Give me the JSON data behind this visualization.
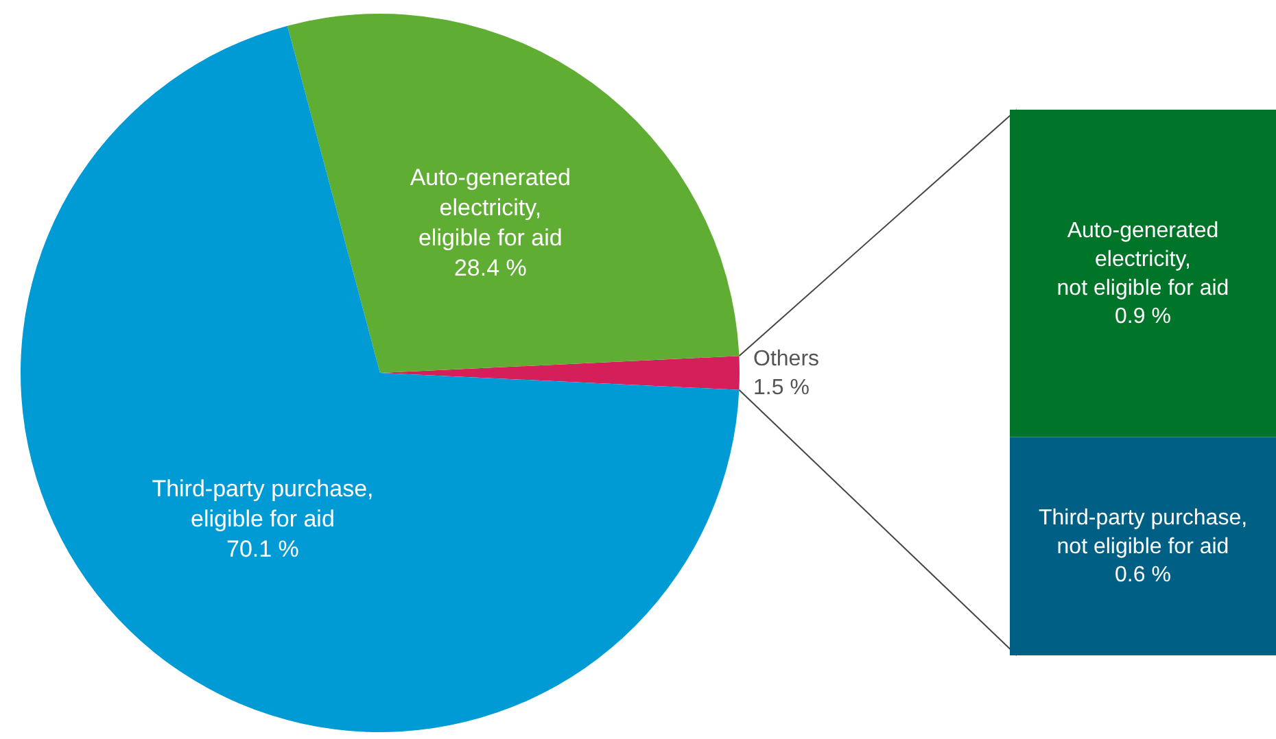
{
  "chart_data": [
    {
      "type": "pie",
      "categories": [
        "Others",
        "Auto-generated electricity, eligible for aid",
        "Third-party purchase, eligible for aid"
      ],
      "values": [
        1.5,
        28.4,
        70.1
      ],
      "colors": [
        "#d41f5b",
        "#5fad32",
        "#009bd5"
      ],
      "value_labels": [
        "1.5 %",
        "28.4 %",
        "70.1 %"
      ]
    },
    {
      "type": "bar",
      "stacked": true,
      "categories": [
        null
      ],
      "series": [
        {
          "name": "Third-party purchase, not eligible for aid",
          "color": "#005f85",
          "values": [
            0.6
          ],
          "value_labels": [
            "0.6 %"
          ]
        },
        {
          "name": "Auto-generated electricity, not eligible for aid",
          "color": "#007428",
          "values": [
            0.9
          ],
          "value_labels": [
            "0.9 %"
          ]
        }
      ]
    }
  ]
}
